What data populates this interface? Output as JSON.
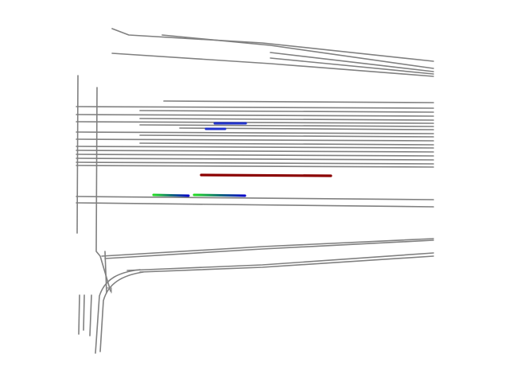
{
  "diagram": {
    "kind": "rail-yard-track-plan",
    "colors": {
      "background": "#ffffff",
      "track": "#808080",
      "train_head": "#0000cc",
      "train_tail": "#22dd22",
      "highlighted_train": "#8b0000"
    }
  }
}
